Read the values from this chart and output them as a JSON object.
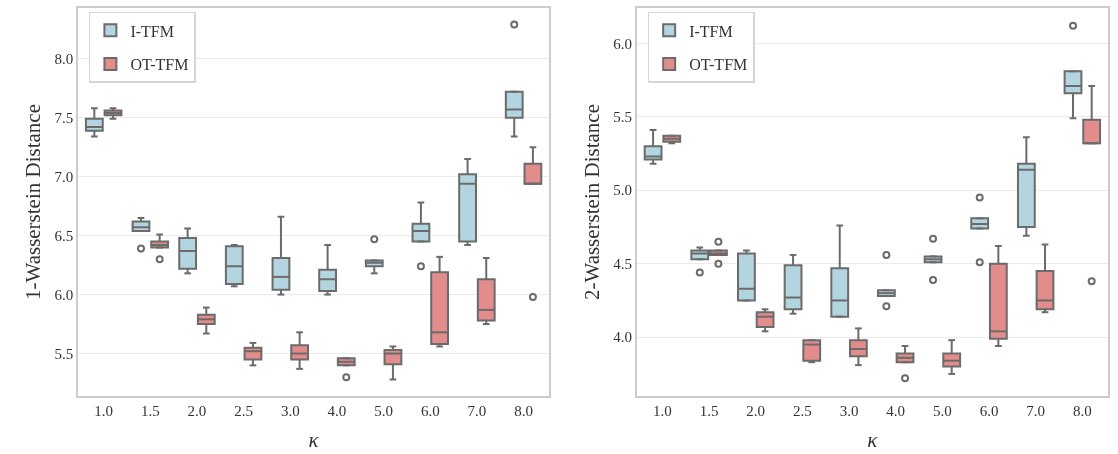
{
  "chart_data": [
    {
      "type": "box",
      "xlabel": "κ",
      "ylabel": "1-Wasserstein Distance",
      "categories": [
        "1.0",
        "1.5",
        "2.0",
        "2.5",
        "3.0",
        "4.0",
        "5.0",
        "6.0",
        "7.0",
        "8.0"
      ],
      "ylim": [
        5.14,
        8.43
      ],
      "yticks": [
        5.5,
        {
          "value": 6,
          "label": "6.0"
        },
        6.5,
        {
          "value": 7,
          "label": "7.0"
        },
        7.5,
        {
          "value": 8,
          "label": "8.0"
        }
      ],
      "grid": "y",
      "legend": "top left",
      "series": [
        {
          "name": "I-TFM",
          "color": "#b3d5df",
          "boxes": [
            {
              "low": 7.34,
              "q1": 7.39,
              "median": 7.42,
              "q3": 7.49,
              "high": 7.58
            },
            {
              "low": 6.54,
              "q1": 6.54,
              "median": 6.57,
              "q3": 6.62,
              "high": 6.65,
              "outliers": [
                6.39
              ]
            },
            {
              "low": 6.18,
              "q1": 6.22,
              "median": 6.37,
              "q3": 6.48,
              "high": 6.56
            },
            {
              "low": 6.07,
              "q1": 6.09,
              "median": 6.24,
              "q3": 6.41,
              "high": 6.42
            },
            {
              "low": 6.0,
              "q1": 6.04,
              "median": 6.15,
              "q3": 6.31,
              "high": 6.66
            },
            {
              "low": 6.0,
              "q1": 6.03,
              "median": 6.13,
              "q3": 6.21,
              "high": 6.42
            },
            {
              "low": 6.18,
              "q1": 6.24,
              "median": 6.27,
              "q3": 6.29,
              "high": 6.29,
              "outliers": [
                6.47
              ]
            },
            {
              "low": 6.45,
              "q1": 6.45,
              "median": 6.54,
              "q3": 6.6,
              "high": 6.78,
              "outliers": [
                6.24
              ]
            },
            {
              "low": 6.42,
              "q1": 6.45,
              "median": 6.94,
              "q3": 7.02,
              "high": 7.15
            },
            {
              "low": 7.34,
              "q1": 7.5,
              "median": 7.57,
              "q3": 7.72,
              "high": 7.72,
              "outliers": [
                8.29
              ]
            }
          ]
        },
        {
          "name": "OT-TFM",
          "color": "#e38c8c",
          "boxes": [
            {
              "low": 7.49,
              "q1": 7.52,
              "median": 7.54,
              "q3": 7.56,
              "high": 7.58
            },
            {
              "low": 6.4,
              "q1": 6.4,
              "median": 6.42,
              "q3": 6.45,
              "high": 6.51,
              "outliers": [
                6.3
              ]
            },
            {
              "low": 5.67,
              "q1": 5.75,
              "median": 5.79,
              "q3": 5.83,
              "high": 5.89
            },
            {
              "low": 5.4,
              "q1": 5.45,
              "median": 5.52,
              "q3": 5.55,
              "high": 5.59
            },
            {
              "low": 5.37,
              "q1": 5.45,
              "median": 5.5,
              "q3": 5.57,
              "high": 5.68
            },
            {
              "low": 5.4,
              "q1": 5.4,
              "median": 5.43,
              "q3": 5.46,
              "high": 5.46,
              "outliers": [
                5.3
              ]
            },
            {
              "low": 5.28,
              "q1": 5.41,
              "median": 5.5,
              "q3": 5.53,
              "high": 5.56
            },
            {
              "low": 5.56,
              "q1": 5.58,
              "median": 5.68,
              "q3": 6.19,
              "high": 6.32
            },
            {
              "low": 5.75,
              "q1": 5.78,
              "median": 5.87,
              "q3": 6.13,
              "high": 6.31
            },
            {
              "low": 6.94,
              "q1": 6.94,
              "median": 6.94,
              "q3": 7.11,
              "high": 7.25,
              "outliers": [
                5.98
              ]
            }
          ]
        }
      ]
    },
    {
      "type": "box",
      "xlabel": "κ",
      "ylabel": "2-Wasserstein Distance",
      "categories": [
        "1.0",
        "1.5",
        "2.0",
        "2.5",
        "3.0",
        "4.0",
        "5.0",
        "6.0",
        "7.0",
        "8.0"
      ],
      "ylim": [
        3.6,
        6.24
      ],
      "yticks": [
        {
          "value": 4,
          "label": "4.0"
        },
        4.5,
        {
          "value": 5,
          "label": "5.0"
        },
        5.5,
        {
          "value": 6,
          "label": "6.0"
        }
      ],
      "grid": "y",
      "legend": "top left",
      "series": [
        {
          "name": "I-TFM",
          "color": "#b3d5df",
          "boxes": [
            {
              "low": 5.18,
              "q1": 5.21,
              "median": 5.23,
              "q3": 5.3,
              "high": 5.41
            },
            {
              "low": 4.53,
              "q1": 4.53,
              "median": 4.57,
              "q3": 4.59,
              "high": 4.61,
              "outliers": [
                4.44
              ]
            },
            {
              "low": 4.25,
              "q1": 4.25,
              "median": 4.33,
              "q3": 4.57,
              "high": 4.59
            },
            {
              "low": 4.16,
              "q1": 4.19,
              "median": 4.27,
              "q3": 4.49,
              "high": 4.56
            },
            {
              "low": 4.14,
              "q1": 4.14,
              "median": 4.25,
              "q3": 4.47,
              "high": 4.76
            },
            {
              "low": 4.28,
              "q1": 4.28,
              "median": 4.3,
              "q3": 4.32,
              "high": 4.32,
              "outliers": [
                4.56,
                4.21
              ]
            },
            {
              "low": 4.51,
              "q1": 4.51,
              "median": 4.53,
              "q3": 4.55,
              "high": 4.55,
              "outliers": [
                4.67,
                4.39
              ]
            },
            {
              "low": 4.74,
              "q1": 4.74,
              "median": 4.77,
              "q3": 4.81,
              "high": 4.81,
              "outliers": [
                4.95,
                4.51
              ]
            },
            {
              "low": 4.69,
              "q1": 4.75,
              "median": 5.14,
              "q3": 5.18,
              "high": 5.36
            },
            {
              "low": 5.49,
              "q1": 5.66,
              "median": 5.71,
              "q3": 5.81,
              "high": 5.81,
              "outliers": [
                6.12
              ]
            }
          ]
        },
        {
          "name": "OT-TFM",
          "color": "#e38c8c",
          "boxes": [
            {
              "low": 5.32,
              "q1": 5.33,
              "median": 5.35,
              "q3": 5.37,
              "high": 5.37
            },
            {
              "low": 4.56,
              "q1": 4.56,
              "median": 4.57,
              "q3": 4.59,
              "high": 4.59,
              "outliers": [
                4.65,
                4.5
              ]
            },
            {
              "low": 4.04,
              "q1": 4.07,
              "median": 4.14,
              "q3": 4.17,
              "high": 4.19
            },
            {
              "low": 3.83,
              "q1": 3.84,
              "median": 3.95,
              "q3": 3.98,
              "high": 3.98
            },
            {
              "low": 3.81,
              "q1": 3.87,
              "median": 3.92,
              "q3": 3.98,
              "high": 4.06
            },
            {
              "low": 3.83,
              "q1": 3.83,
              "median": 3.86,
              "q3": 3.89,
              "high": 3.94,
              "outliers": [
                3.72
              ]
            },
            {
              "low": 3.75,
              "q1": 3.8,
              "median": 3.84,
              "q3": 3.89,
              "high": 3.98
            },
            {
              "low": 3.94,
              "q1": 3.99,
              "median": 4.04,
              "q3": 4.5,
              "high": 4.62
            },
            {
              "low": 4.17,
              "q1": 4.19,
              "median": 4.25,
              "q3": 4.45,
              "high": 4.63
            },
            {
              "low": 5.32,
              "q1": 5.32,
              "median": 5.32,
              "q3": 5.48,
              "high": 5.71,
              "outliers": [
                4.38
              ]
            }
          ]
        }
      ]
    }
  ]
}
